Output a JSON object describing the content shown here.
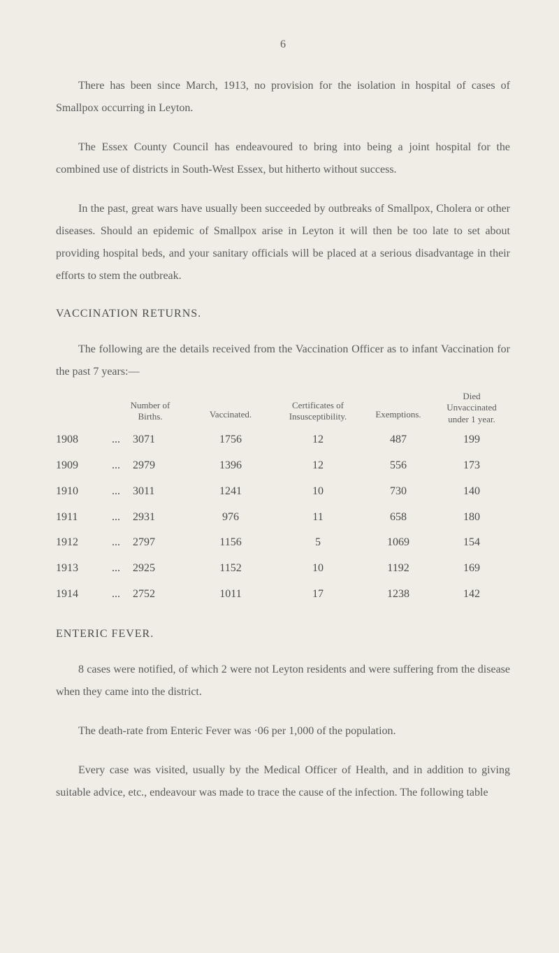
{
  "page_number": "6",
  "paragraphs": {
    "p1": "There has been since March, 1913, no provision for the isolation in hospital of cases of Smallpox occurring in Leyton.",
    "p2": "The Essex County Council has endeavoured to bring into being a joint hospital for the combined use of districts in South-West Essex, but hitherto without success.",
    "p3": "In the past, great wars have usually been succeeded by outbreaks of Smallpox, Cholera or other diseases. Should an epidemic of Smallpox arise in Leyton it will then be too late to set about providing hospital beds, and your sanitary officials will be placed at a serious disadvantage in their efforts to stem the outbreak.",
    "p4": "The following are the details received from the Vaccination Officer as to infant Vaccination for the past 7 years:—",
    "p5": "8 cases were notified, of which 2 were not Leyton residents and were suffering from the disease when they came into the district.",
    "p6": "The death-rate from Enteric Fever was ·06 per 1,000 of the population.",
    "p7": "Every case was visited, usually by the Medical Officer of Health, and in addition to giving suitable advice, etc., endeavour was made to trace the cause of the infection. The following table"
  },
  "headings": {
    "vaccination": "VACCINATION RETURNS.",
    "enteric": "ENTERIC FEVER."
  },
  "table": {
    "headers": {
      "births_l1": "Number of",
      "births_l2": "Births.",
      "vaccinated": "Vaccinated.",
      "cert_l1": "Certificates of",
      "cert_l2": "Insusceptibility.",
      "exemptions": "Exemptions.",
      "died_l1": "Died",
      "died_l2": "Unvaccinated",
      "died_l3": "under 1 year."
    },
    "rows": [
      {
        "year": "1908",
        "dots": "...",
        "births": "3071",
        "vaccinated": "1756",
        "cert": "12",
        "exempt": "487",
        "died": "199"
      },
      {
        "year": "1909",
        "dots": "...",
        "births": "2979",
        "vaccinated": "1396",
        "cert": "12",
        "exempt": "556",
        "died": "173"
      },
      {
        "year": "1910",
        "dots": "...",
        "births": "3011",
        "vaccinated": "1241",
        "cert": "10",
        "exempt": "730",
        "died": "140"
      },
      {
        "year": "1911",
        "dots": "...",
        "births": "2931",
        "vaccinated": "976",
        "cert": "11",
        "exempt": "658",
        "died": "180"
      },
      {
        "year": "1912",
        "dots": "...",
        "births": "2797",
        "vaccinated": "1156",
        "cert": "5",
        "exempt": "1069",
        "died": "154"
      },
      {
        "year": "1913",
        "dots": "...",
        "births": "2925",
        "vaccinated": "1152",
        "cert": "10",
        "exempt": "1192",
        "died": "169"
      },
      {
        "year": "1914",
        "dots": "...",
        "births": "2752",
        "vaccinated": "1011",
        "cert": "17",
        "exempt": "1238",
        "died": "142"
      }
    ]
  },
  "colors": {
    "background": "#f0ede6",
    "text": "#4a4a4a",
    "text_light": "#5a5a5a"
  }
}
